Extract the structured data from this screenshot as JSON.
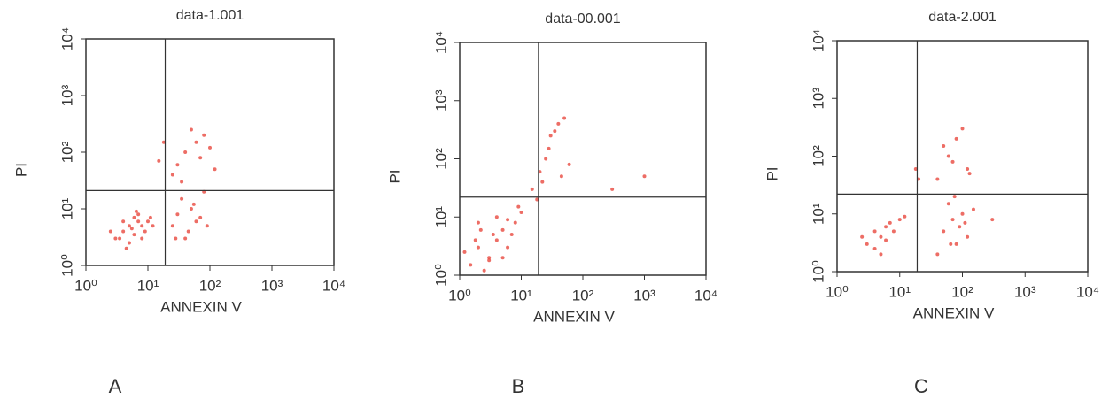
{
  "chart_data": [
    {
      "type": "scatter",
      "title": "data-1.001",
      "x_label": "ANNEXIN V",
      "y_label": "PI",
      "panel_label": "A",
      "color": "#e8493f",
      "xscale": "log",
      "yscale": "log",
      "xlim": [
        1,
        10000
      ],
      "ylim": [
        1,
        10000
      ],
      "xticks": [
        {
          "value": 1,
          "label": "10⁰"
        },
        {
          "value": 10,
          "label": "10¹"
        },
        {
          "value": 100,
          "label": "10²"
        },
        {
          "value": 1000,
          "label": "10³"
        },
        {
          "value": 10000,
          "label": "10⁴"
        }
      ],
      "yticks": [
        {
          "value": 1,
          "label": "10⁰"
        },
        {
          "value": 10,
          "label": "10¹"
        },
        {
          "value": 100,
          "label": "10²"
        },
        {
          "value": 1000,
          "label": "10³"
        },
        {
          "value": 10000,
          "label": "10⁴"
        }
      ],
      "quadrant": {
        "x": 19,
        "y": 21
      },
      "x": [
        3,
        4,
        5,
        6,
        7,
        8,
        5,
        4,
        6,
        9,
        3.5,
        2.5,
        7,
        10,
        12,
        5.5,
        4.5,
        8,
        6.5,
        11,
        25,
        30,
        40,
        50,
        60,
        35,
        45,
        70,
        80,
        28,
        55,
        90,
        30,
        40,
        60,
        80,
        100,
        25,
        50,
        70,
        120,
        35,
        15,
        18
      ],
      "y": [
        3,
        4,
        5,
        3.5,
        6,
        5,
        2.5,
        6,
        7,
        4,
        3,
        4,
        8,
        6,
        5,
        4.5,
        2,
        3,
        9,
        7,
        5,
        8,
        3,
        10,
        6,
        15,
        4,
        7,
        20,
        3,
        12,
        5,
        60,
        100,
        150,
        200,
        120,
        40,
        250,
        80,
        50,
        30,
        70,
        150
      ]
    },
    {
      "type": "scatter",
      "title": "data-00.001",
      "x_label": "ANNEXIN V",
      "y_label": "PI",
      "panel_label": "B",
      "color": "#e8493f",
      "xscale": "log",
      "yscale": "log",
      "xlim": [
        1,
        10000
      ],
      "ylim": [
        1,
        10000
      ],
      "xticks": [
        {
          "value": 1,
          "label": "10⁰"
        },
        {
          "value": 10,
          "label": "10¹"
        },
        {
          "value": 100,
          "label": "10²"
        },
        {
          "value": 1000,
          "label": "10³"
        },
        {
          "value": 10000,
          "label": "10⁴"
        }
      ],
      "yticks": [
        {
          "value": 1,
          "label": "10⁰"
        },
        {
          "value": 10,
          "label": "10¹"
        },
        {
          "value": 100,
          "label": "10²"
        },
        {
          "value": 1000,
          "label": "10³"
        },
        {
          "value": 10000,
          "label": "10⁴"
        }
      ],
      "quadrant": {
        "x": 19,
        "y": 22
      },
      "x": [
        1.5,
        2,
        3,
        4,
        5,
        2.5,
        3.5,
        6,
        8,
        1.2,
        2,
        4,
        7,
        10,
        3,
        5,
        1.8,
        9,
        6,
        2.2,
        15,
        20,
        25,
        30,
        18,
        40,
        22,
        35,
        28,
        50,
        60,
        45,
        300,
        1000
      ],
      "y": [
        1.5,
        3,
        2,
        4,
        6,
        1.2,
        5,
        3,
        8,
        2.5,
        8,
        10,
        5,
        12,
        1.8,
        2,
        4,
        15,
        9,
        6,
        30,
        60,
        100,
        250,
        20,
        400,
        40,
        300,
        150,
        500,
        80,
        50,
        30,
        50
      ]
    },
    {
      "type": "scatter",
      "title": "data-2.001",
      "x_label": "ANNEXIN V",
      "y_label": "PI",
      "panel_label": "C",
      "color": "#e8493f",
      "xscale": "log",
      "yscale": "log",
      "xlim": [
        1,
        10000
      ],
      "ylim": [
        1,
        10000
      ],
      "xticks": [
        {
          "value": 1,
          "label": "10⁰"
        },
        {
          "value": 10,
          "label": "10¹"
        },
        {
          "value": 100,
          "label": "10²"
        },
        {
          "value": 1000,
          "label": "10³"
        },
        {
          "value": 10000,
          "label": "10⁴"
        }
      ],
      "yticks": [
        {
          "value": 1,
          "label": "10⁰"
        },
        {
          "value": 10,
          "label": "10¹"
        },
        {
          "value": 100,
          "label": "10²"
        },
        {
          "value": 1000,
          "label": "10³"
        },
        {
          "value": 10000,
          "label": "10⁴"
        }
      ],
      "quadrant": {
        "x": 19,
        "y": 22
      },
      "x": [
        3,
        4,
        5,
        6,
        7,
        8,
        5,
        10,
        4,
        6,
        2.5,
        12,
        50,
        70,
        80,
        100,
        60,
        90,
        120,
        150,
        40,
        75,
        110,
        65,
        40,
        60,
        80,
        100,
        120,
        50,
        70,
        130,
        18,
        20,
        300
      ],
      "y": [
        3,
        5,
        4,
        6,
        7,
        5,
        2,
        8,
        2.5,
        3.5,
        4,
        9,
        5,
        8,
        3,
        10,
        15,
        6,
        4,
        12,
        2,
        20,
        7,
        3,
        40,
        100,
        200,
        300,
        60,
        150,
        80,
        50,
        60,
        40,
        8
      ]
    }
  ]
}
